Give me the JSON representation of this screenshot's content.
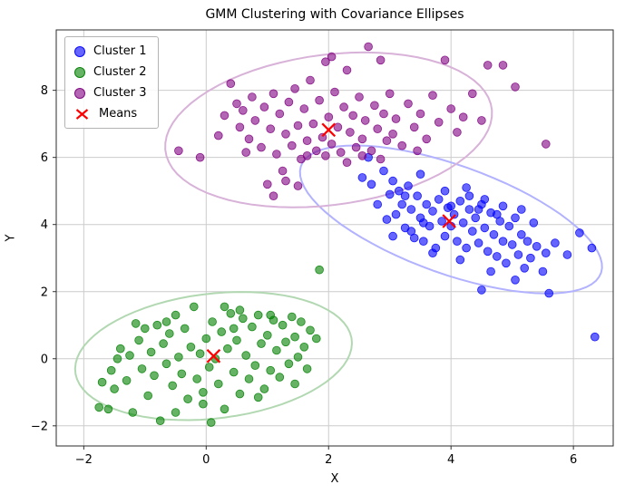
{
  "chart_data": {
    "type": "scatter",
    "title": "GMM Clustering with Covariance Ellipses",
    "xlabel": "X",
    "ylabel": "Y",
    "xlim": [
      -2.45,
      6.65
    ],
    "ylim": [
      -2.6,
      9.8
    ],
    "xticks": [
      -2,
      0,
      2,
      4,
      6
    ],
    "yticks": [
      -2,
      0,
      2,
      4,
      6,
      8
    ],
    "grid": true,
    "legend_position": "upper-left",
    "series": [
      {
        "name": "Cluster 1",
        "color": "#0000ff",
        "point_alpha": 0.6,
        "ellipse_color": "#b2b2ff",
        "ellipse": {
          "cx": 4.0,
          "cy": 4.15,
          "a": 3.0,
          "b": 1.4,
          "angle_deg": -40
        },
        "points": [
          [
            2.55,
            5.4
          ],
          [
            2.65,
            6.0
          ],
          [
            2.7,
            5.2
          ],
          [
            2.8,
            4.6
          ],
          [
            2.9,
            5.6
          ],
          [
            3.0,
            4.9
          ],
          [
            3.05,
            5.3
          ],
          [
            3.1,
            4.3
          ],
          [
            3.15,
            5.0
          ],
          [
            3.2,
            4.6
          ],
          [
            3.25,
            3.9
          ],
          [
            3.3,
            5.15
          ],
          [
            3.35,
            4.45
          ],
          [
            3.4,
            3.6
          ],
          [
            3.45,
            4.85
          ],
          [
            3.5,
            4.2
          ],
          [
            3.55,
            3.5
          ],
          [
            3.6,
            4.6
          ],
          [
            3.65,
            3.95
          ],
          [
            3.7,
            4.4
          ],
          [
            3.75,
            3.3
          ],
          [
            3.8,
            4.75
          ],
          [
            3.85,
            4.1
          ],
          [
            3.9,
            3.65
          ],
          [
            3.95,
            4.5
          ],
          [
            4.0,
            3.95
          ],
          [
            4.05,
            4.3
          ],
          [
            4.1,
            3.5
          ],
          [
            4.15,
            4.7
          ],
          [
            4.2,
            4.05
          ],
          [
            4.25,
            3.3
          ],
          [
            4.3,
            4.45
          ],
          [
            4.35,
            3.8
          ],
          [
            4.4,
            4.2
          ],
          [
            4.45,
            3.45
          ],
          [
            4.5,
            4.6
          ],
          [
            4.55,
            3.9
          ],
          [
            4.6,
            3.2
          ],
          [
            4.65,
            4.35
          ],
          [
            4.7,
            3.7
          ],
          [
            4.75,
            3.05
          ],
          [
            4.8,
            4.1
          ],
          [
            4.85,
            3.5
          ],
          [
            4.9,
            2.85
          ],
          [
            4.95,
            3.95
          ],
          [
            5.0,
            3.4
          ],
          [
            5.05,
            4.2
          ],
          [
            5.1,
            3.1
          ],
          [
            5.15,
            3.7
          ],
          [
            5.2,
            2.7
          ],
          [
            5.25,
            3.5
          ],
          [
            5.3,
            3.0
          ],
          [
            5.4,
            3.35
          ],
          [
            5.5,
            2.6
          ],
          [
            5.55,
            3.15
          ],
          [
            5.6,
            1.95
          ],
          [
            5.7,
            3.45
          ],
          [
            5.9,
            3.1
          ],
          [
            6.1,
            3.75
          ],
          [
            6.3,
            3.3
          ],
          [
            6.35,
            0.65
          ],
          [
            3.5,
            5.5
          ],
          [
            3.9,
            5.0
          ],
          [
            4.3,
            4.85
          ],
          [
            2.95,
            4.15
          ],
          [
            3.25,
            4.85
          ],
          [
            4.0,
            4.55
          ],
          [
            4.45,
            4.45
          ],
          [
            3.7,
            3.15
          ],
          [
            4.15,
            2.95
          ],
          [
            4.55,
            4.75
          ],
          [
            3.35,
            3.8
          ],
          [
            4.85,
            4.55
          ],
          [
            5.05,
            2.35
          ],
          [
            4.65,
            2.6
          ],
          [
            3.55,
            4.05
          ],
          [
            5.35,
            4.05
          ],
          [
            4.75,
            4.3
          ],
          [
            4.25,
            5.1
          ],
          [
            3.05,
            3.65
          ],
          [
            4.5,
            2.05
          ],
          [
            5.15,
            4.45
          ]
        ]
      },
      {
        "name": "Cluster 2",
        "color": "#008000",
        "point_alpha": 0.6,
        "ellipse_color": "#b2d8b2",
        "ellipse": {
          "cx": 0.12,
          "cy": 0.08,
          "a": 2.35,
          "b": 1.8,
          "angle_deg": 25
        },
        "points": [
          [
            -1.75,
            -1.45
          ],
          [
            -1.6,
            -1.5
          ],
          [
            -1.55,
            -0.35
          ],
          [
            -1.5,
            -0.9
          ],
          [
            -1.4,
            0.3
          ],
          [
            -1.3,
            -0.65
          ],
          [
            -1.25,
            0.1
          ],
          [
            -1.2,
            -1.6
          ],
          [
            -1.1,
            0.55
          ],
          [
            -1.05,
            -0.3
          ],
          [
            -1.0,
            0.9
          ],
          [
            -0.95,
            -1.1
          ],
          [
            -0.9,
            0.2
          ],
          [
            -0.85,
            -0.5
          ],
          [
            -0.8,
            1.0
          ],
          [
            -0.75,
            -1.85
          ],
          [
            -0.7,
            0.45
          ],
          [
            -0.65,
            -0.15
          ],
          [
            -0.6,
            0.75
          ],
          [
            -0.55,
            -0.8
          ],
          [
            -0.5,
            1.3
          ],
          [
            -0.45,
            0.05
          ],
          [
            -0.4,
            -0.45
          ],
          [
            -0.35,
            0.9
          ],
          [
            -0.3,
            -1.2
          ],
          [
            -0.25,
            0.35
          ],
          [
            -0.2,
            1.55
          ],
          [
            -0.15,
            -0.6
          ],
          [
            -0.1,
            0.15
          ],
          [
            -0.05,
            -1.0
          ],
          [
            0.0,
            0.6
          ],
          [
            0.05,
            -0.25
          ],
          [
            0.1,
            1.1
          ],
          [
            0.15,
            0.0
          ],
          [
            0.2,
            -0.75
          ],
          [
            0.25,
            0.8
          ],
          [
            0.3,
            -1.5
          ],
          [
            0.35,
            0.3
          ],
          [
            0.4,
            1.35
          ],
          [
            0.45,
            -0.4
          ],
          [
            0.5,
            0.55
          ],
          [
            0.55,
            -1.05
          ],
          [
            0.6,
            1.2
          ],
          [
            0.65,
            0.1
          ],
          [
            0.7,
            -0.6
          ],
          [
            0.75,
            0.95
          ],
          [
            0.8,
            -0.2
          ],
          [
            0.85,
            1.3
          ],
          [
            0.9,
            0.45
          ],
          [
            0.95,
            -0.9
          ],
          [
            1.0,
            0.7
          ],
          [
            1.05,
            -0.35
          ],
          [
            1.1,
            1.15
          ],
          [
            1.15,
            0.25
          ],
          [
            1.2,
            -0.55
          ],
          [
            1.25,
            1.0
          ],
          [
            1.3,
            0.5
          ],
          [
            1.35,
            -0.15
          ],
          [
            1.4,
            1.25
          ],
          [
            1.45,
            0.65
          ],
          [
            1.5,
            0.05
          ],
          [
            1.55,
            1.1
          ],
          [
            1.6,
            0.35
          ],
          [
            1.65,
            -0.3
          ],
          [
            1.7,
            0.85
          ],
          [
            1.8,
            0.6
          ],
          [
            1.85,
            2.65
          ],
          [
            0.08,
            -1.9
          ],
          [
            -0.5,
            -1.6
          ],
          [
            0.3,
            1.55
          ],
          [
            -1.7,
            -0.7
          ],
          [
            1.45,
            -0.75
          ],
          [
            -1.15,
            1.05
          ],
          [
            0.55,
            1.45
          ],
          [
            -0.05,
            -1.35
          ],
          [
            1.05,
            1.3
          ],
          [
            -0.65,
            1.1
          ],
          [
            0.85,
            -1.15
          ],
          [
            -1.45,
            0.0
          ],
          [
            0.45,
            0.9
          ]
        ]
      },
      {
        "name": "Cluster 3",
        "color": "#800080",
        "point_alpha": 0.6,
        "ellipse_color": "#d8b2d8",
        "ellipse": {
          "cx": 2.0,
          "cy": 6.82,
          "a": 2.8,
          "b": 2.15,
          "angle_deg": 28
        },
        "points": [
          [
            -0.45,
            6.2
          ],
          [
            -0.1,
            6.0
          ],
          [
            0.3,
            7.25
          ],
          [
            0.4,
            8.2
          ],
          [
            0.5,
            7.6
          ],
          [
            0.55,
            6.9
          ],
          [
            0.6,
            7.4
          ],
          [
            0.7,
            6.55
          ],
          [
            0.75,
            7.8
          ],
          [
            0.8,
            7.1
          ],
          [
            0.9,
            6.3
          ],
          [
            0.95,
            7.5
          ],
          [
            1.0,
            5.2
          ],
          [
            1.05,
            6.85
          ],
          [
            1.1,
            7.9
          ],
          [
            1.15,
            6.1
          ],
          [
            1.2,
            7.3
          ],
          [
            1.25,
            5.6
          ],
          [
            1.3,
            6.7
          ],
          [
            1.35,
            7.65
          ],
          [
            1.4,
            6.35
          ],
          [
            1.45,
            8.05
          ],
          [
            1.5,
            6.95
          ],
          [
            1.55,
            5.95
          ],
          [
            1.6,
            7.45
          ],
          [
            1.65,
            6.5
          ],
          [
            1.7,
            8.3
          ],
          [
            1.75,
            7.0
          ],
          [
            1.8,
            6.2
          ],
          [
            1.85,
            7.7
          ],
          [
            1.9,
            6.6
          ],
          [
            1.95,
            8.85
          ],
          [
            2.0,
            7.2
          ],
          [
            2.05,
            6.4
          ],
          [
            2.1,
            7.95
          ],
          [
            2.15,
            6.9
          ],
          [
            2.2,
            6.15
          ],
          [
            2.25,
            7.5
          ],
          [
            2.3,
            8.6
          ],
          [
            2.35,
            6.75
          ],
          [
            2.4,
            7.25
          ],
          [
            2.45,
            6.3
          ],
          [
            2.5,
            7.8
          ],
          [
            2.55,
            6.55
          ],
          [
            2.6,
            7.1
          ],
          [
            2.65,
            9.3
          ],
          [
            2.7,
            6.2
          ],
          [
            2.75,
            7.55
          ],
          [
            2.8,
            6.85
          ],
          [
            2.85,
            8.9
          ],
          [
            2.9,
            7.3
          ],
          [
            2.95,
            6.5
          ],
          [
            3.0,
            7.9
          ],
          [
            3.05,
            6.7
          ],
          [
            3.1,
            7.15
          ],
          [
            3.2,
            6.35
          ],
          [
            3.3,
            7.6
          ],
          [
            3.4,
            6.9
          ],
          [
            3.5,
            7.3
          ],
          [
            3.6,
            6.55
          ],
          [
            3.7,
            7.85
          ],
          [
            3.8,
            7.05
          ],
          [
            3.9,
            8.9
          ],
          [
            4.0,
            7.45
          ],
          [
            4.1,
            6.75
          ],
          [
            4.2,
            7.2
          ],
          [
            4.35,
            7.9
          ],
          [
            4.5,
            7.1
          ],
          [
            4.6,
            8.75
          ],
          [
            4.85,
            8.75
          ],
          [
            5.05,
            8.1
          ],
          [
            5.55,
            6.4
          ],
          [
            1.1,
            4.85
          ],
          [
            1.5,
            5.15
          ],
          [
            2.3,
            5.85
          ],
          [
            0.2,
            6.65
          ],
          [
            1.95,
            6.05
          ],
          [
            2.55,
            6.05
          ],
          [
            1.65,
            6.05
          ],
          [
            3.45,
            6.2
          ],
          [
            2.05,
            9.0
          ],
          [
            1.3,
            5.3
          ],
          [
            2.85,
            5.95
          ],
          [
            0.65,
            6.15
          ]
        ]
      }
    ],
    "means": {
      "label": "Means",
      "color": "#ff0000",
      "marker": "x",
      "points": [
        [
          3.97,
          4.1
        ],
        [
          0.12,
          0.08
        ],
        [
          2.0,
          6.82
        ]
      ]
    }
  }
}
